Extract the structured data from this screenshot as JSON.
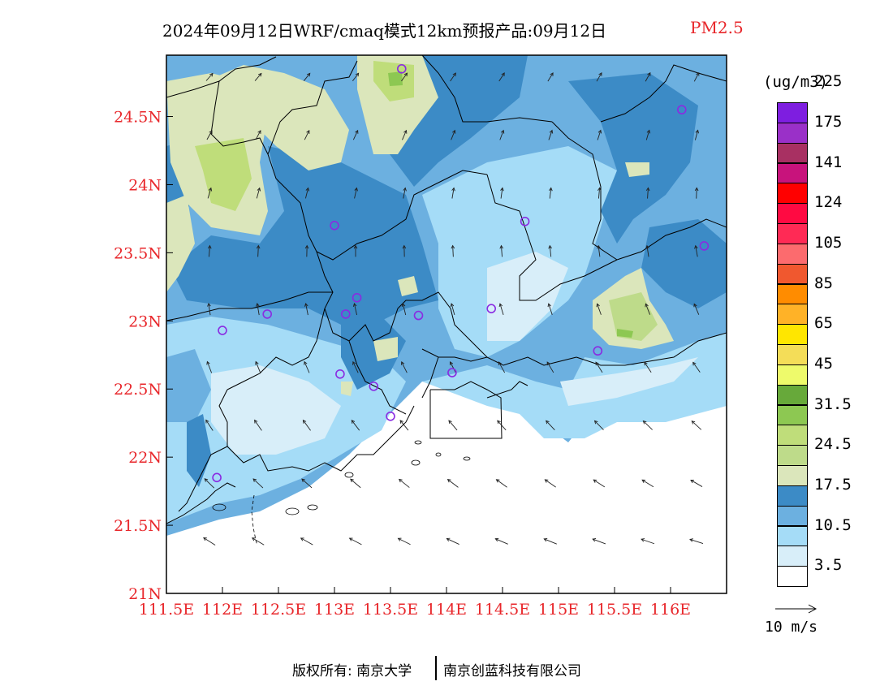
{
  "title": {
    "main": "2024年09月12日WRF/cmaq模式12km预报产品:09月12日",
    "variable": "PM2.5"
  },
  "colorbar": {
    "unit": "(ug/m3)",
    "colors": [
      "#ffffff",
      "#d8eef9",
      "#a5dcf7",
      "#6cb0e0",
      "#3c8bc6",
      "#dbe6bb",
      "#bedb8a",
      "#bfdd7a",
      "#8dc852",
      "#67a93a",
      "#eefa6b",
      "#f4dd58",
      "#ffe600",
      "#ffb227",
      "#ff8c00",
      "#f0582f",
      "#fc6b6e",
      "#ff2a55",
      "#ff0a42",
      "#ff0000",
      "#c8137c",
      "#a83062",
      "#9a30c8",
      "#7e1ee0"
    ],
    "labels": [
      "3.5",
      "10.5",
      "17.5",
      "24.5",
      "31.5",
      "45",
      "65",
      "85",
      "105",
      "124",
      "141",
      "175",
      "225"
    ]
  },
  "axes": {
    "x_ticks": [
      "111.5E",
      "112E",
      "112.5E",
      "113E",
      "113.5E",
      "114E",
      "114.5E",
      "115E",
      "115.5E",
      "116E"
    ],
    "y_ticks": [
      "21N",
      "21.5N",
      "22N",
      "22.5N",
      "23N",
      "23.5N",
      "24N",
      "24.5N"
    ],
    "x_range": [
      111.5,
      116.5
    ],
    "y_range": [
      21.0,
      24.95
    ]
  },
  "wind_key": {
    "label": "10 m/s"
  },
  "stations": [
    {
      "lon": 113.6,
      "lat": 24.85
    },
    {
      "lon": 116.1,
      "lat": 24.55
    },
    {
      "lon": 114.7,
      "lat": 23.73
    },
    {
      "lon": 116.3,
      "lat": 23.55
    },
    {
      "lon": 113.0,
      "lat": 23.7
    },
    {
      "lon": 112.4,
      "lat": 23.05
    },
    {
      "lon": 112.0,
      "lat": 22.93
    },
    {
      "lon": 113.2,
      "lat": 23.17
    },
    {
      "lon": 113.1,
      "lat": 23.05
    },
    {
      "lon": 113.75,
      "lat": 23.04
    },
    {
      "lon": 114.4,
      "lat": 23.09
    },
    {
      "lon": 113.05,
      "lat": 22.61
    },
    {
      "lon": 113.35,
      "lat": 22.52
    },
    {
      "lon": 114.05,
      "lat": 22.62
    },
    {
      "lon": 113.5,
      "lat": 22.3
    },
    {
      "lon": 111.95,
      "lat": 21.85
    },
    {
      "lon": 115.35,
      "lat": 22.78
    }
  ],
  "footer": {
    "left": "版权所有: 南京大学",
    "right": "南京创蓝科技有限公司"
  }
}
